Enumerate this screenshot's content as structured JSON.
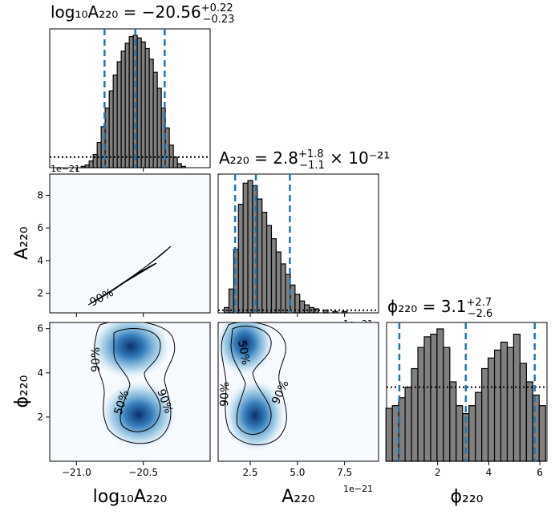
{
  "chart_data": {
    "type": "corner",
    "parameters": [
      "log10_A220",
      "A220",
      "phi220"
    ],
    "axis_labels": {
      "log10_A220": "log₁₀A₂₂₀",
      "A220": "A₂₂₀",
      "phi220": "ϕ₂₂₀"
    },
    "titles": [
      {
        "param": "log10_A220",
        "prefix": "log₁₀A₂₂₀ = −20.56",
        "sup": "+0.22",
        "sub": "−0.23",
        "suffix": ""
      },
      {
        "param": "A220",
        "prefix": "A₂₂₀ = 2.8",
        "sup": "+1.8",
        "sub": "−1.1",
        "suffix": " × 10⁻²¹"
      },
      {
        "param": "phi220",
        "prefix": "ϕ₂₂₀ = 3.1",
        "sup": "+2.7",
        "sub": "−2.6",
        "suffix": ""
      }
    ],
    "offset_text": "1e−21",
    "ranges": {
      "log10_A220": [
        -21.2,
        -20.0
      ],
      "A220": [
        0.8,
        9.3
      ],
      "phi220": [
        0.0,
        6.28
      ]
    },
    "ticks": {
      "log10_A220": {
        "values": [
          -21.0,
          -20.5
        ],
        "labels": [
          "−21.0",
          "−20.5"
        ]
      },
      "A220": {
        "values": [
          2.5,
          5.0,
          7.5
        ],
        "labels": [
          "2.5",
          "5.0",
          "7.5"
        ]
      },
      "A220_y": {
        "values": [
          2,
          4,
          6,
          8
        ],
        "labels": [
          "2",
          "4",
          "6",
          "8"
        ]
      },
      "phi220": {
        "values": [
          2,
          4,
          6
        ],
        "labels": [
          "2",
          "4",
          "6"
        ]
      }
    },
    "quantiles": {
      "log10_A220": [
        -20.79,
        -20.56,
        -20.34
      ],
      "A220": [
        1.7,
        2.8,
        4.6
      ],
      "phi220": [
        0.5,
        3.1,
        5.8
      ]
    },
    "histograms": {
      "log10_A220": {
        "x": [
          -20.98,
          -20.95,
          -20.92,
          -20.89,
          -20.86,
          -20.83,
          -20.8,
          -20.77,
          -20.74,
          -20.71,
          -20.68,
          -20.65,
          -20.62,
          -20.59,
          -20.56,
          -20.53,
          -20.5,
          -20.47,
          -20.44,
          -20.41,
          -20.38,
          -20.35,
          -20.32,
          -20.29,
          -20.26,
          -20.23,
          -20.2
        ],
        "counts": [
          0.0,
          0.01,
          0.02,
          0.05,
          0.1,
          0.19,
          0.31,
          0.45,
          0.58,
          0.7,
          0.8,
          0.88,
          0.94,
          0.99,
          1.0,
          0.98,
          0.95,
          0.9,
          0.82,
          0.72,
          0.6,
          0.45,
          0.3,
          0.17,
          0.08,
          0.03,
          0.01
        ],
        "prior": 0.08
      },
      "A220": {
        "x": [
          1.0,
          1.25,
          1.5,
          1.75,
          2.0,
          2.25,
          2.5,
          2.75,
          3.0,
          3.25,
          3.5,
          3.75,
          4.0,
          4.25,
          4.5,
          4.75,
          5.0,
          5.25,
          5.5,
          5.75,
          6.0,
          6.5,
          7.0,
          7.5,
          8.0,
          8.5,
          9.0
        ],
        "counts": [
          0.0,
          0.04,
          0.18,
          0.48,
          0.82,
          0.98,
          1.0,
          0.96,
          0.86,
          0.76,
          0.66,
          0.56,
          0.46,
          0.37,
          0.29,
          0.21,
          0.14,
          0.09,
          0.06,
          0.04,
          0.03,
          0.02,
          0.01,
          0.01,
          0.0,
          0.0,
          0.0
        ],
        "prior": 0.02
      },
      "phi220": {
        "x": [
          0.1,
          0.35,
          0.6,
          0.85,
          1.1,
          1.35,
          1.6,
          1.85,
          2.1,
          2.35,
          2.6,
          2.85,
          3.1,
          3.35,
          3.6,
          3.85,
          4.1,
          4.35,
          4.6,
          4.85,
          5.1,
          5.35,
          5.6,
          5.85,
          6.1
        ],
        "counts": [
          0.4,
          0.42,
          0.48,
          0.56,
          0.7,
          0.86,
          0.94,
          0.96,
          1.0,
          0.86,
          0.6,
          0.42,
          0.36,
          0.42,
          0.52,
          0.7,
          0.78,
          0.84,
          0.9,
          0.86,
          0.96,
          0.74,
          0.6,
          0.5,
          0.42
        ],
        "prior": 0.56
      }
    },
    "contour_labels": {
      "log10_A220_vs_A220": [
        "90%"
      ],
      "log10_A220_vs_phi220": [
        "90%",
        "50%",
        "90%"
      ],
      "A220_vs_phi220": [
        "50%",
        "90%",
        "90%"
      ]
    },
    "colors": {
      "hist_fill": "#808080",
      "quantile_line": "#1f77b4",
      "density_dark": "#08306b",
      "density_light": "#f7fbff"
    }
  }
}
